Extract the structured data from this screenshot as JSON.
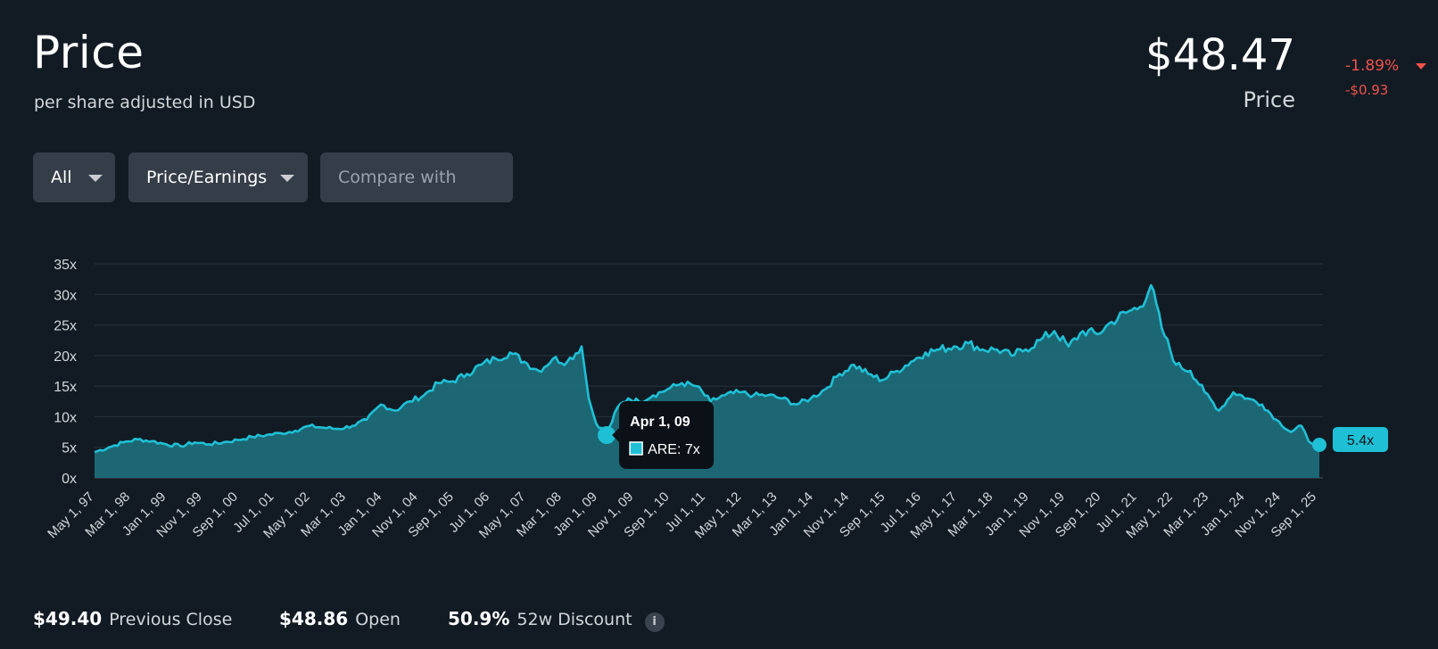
{
  "header": {
    "title": "Price",
    "subtitle": "per share adjusted in USD",
    "price": "$48.47",
    "price_label": "Price",
    "change_pct": "-1.89%",
    "change_abs": "-$0.93"
  },
  "controls": {
    "range": "All",
    "metric": "Price/Earnings",
    "compare_placeholder": "Compare with"
  },
  "tooltip": {
    "date": "Apr 1, 09",
    "series_text": "ARE: 7x"
  },
  "last_badge": "5.4x",
  "stats": {
    "previous_close_value": "$49.40",
    "previous_close_label": "Previous Close",
    "open_value": "$48.86",
    "open_label": "Open",
    "discount_value": "50.9%",
    "discount_label": "52w Discount",
    "info_icon": "info-icon"
  },
  "colors": {
    "background": "#121b24",
    "line": "#1fc0d6",
    "area": "#1e6b78",
    "negative": "#f0524a"
  },
  "chart_data": {
    "type": "area",
    "series": [
      {
        "name": "ARE"
      }
    ],
    "y_ticks": [
      "0x",
      "5x",
      "10x",
      "15x",
      "20x",
      "25x",
      "30x",
      "35x"
    ],
    "ylim": [
      0,
      35
    ],
    "x_tick_labels": [
      "May 1, 97",
      "Mar 1, 98",
      "Jan 1, 99",
      "Nov 1, 99",
      "Sep 1, 00",
      "Jul 1, 01",
      "May 1, 02",
      "Mar 1, 03",
      "Jan 1, 04",
      "Nov 1, 04",
      "Sep 1, 05",
      "Jul 1, 06",
      "May 1, 07",
      "Mar 1, 08",
      "Jan 1, 09",
      "Nov 1, 09",
      "Sep 1, 10",
      "Jul 1, 11",
      "May 1, 12",
      "Mar 1, 13",
      "Jan 1, 14",
      "Nov 1, 14",
      "Sep 1, 15",
      "Jul 1, 16",
      "May 1, 17",
      "Mar 1, 18",
      "Jan 1, 19",
      "Nov 1, 19",
      "Sep 1, 20",
      "Jul 1, 21",
      "May 1, 22",
      "Mar 1, 23",
      "Jan 1, 24",
      "Nov 1, 24",
      "Sep 1, 25"
    ],
    "points": [
      [
        "1997-05",
        4.2
      ],
      [
        "1997-09",
        5.0
      ],
      [
        "1998-01",
        5.8
      ],
      [
        "1998-05",
        6.3
      ],
      [
        "1998-09",
        6.0
      ],
      [
        "1999-01",
        5.5
      ],
      [
        "1999-05",
        5.2
      ],
      [
        "1999-09",
        5.8
      ],
      [
        "2000-01",
        5.5
      ],
      [
        "2000-05",
        5.8
      ],
      [
        "2000-09",
        6.2
      ],
      [
        "2001-01",
        6.7
      ],
      [
        "2001-05",
        7.0
      ],
      [
        "2001-09",
        7.3
      ],
      [
        "2002-01",
        7.7
      ],
      [
        "2002-05",
        8.5
      ],
      [
        "2002-09",
        8.2
      ],
      [
        "2003-01",
        8.0
      ],
      [
        "2003-05",
        8.5
      ],
      [
        "2003-09",
        9.5
      ],
      [
        "2004-01",
        12.0
      ],
      [
        "2004-05",
        11.0
      ],
      [
        "2004-09",
        12.5
      ],
      [
        "2005-01",
        13.5
      ],
      [
        "2005-05",
        15.5
      ],
      [
        "2005-09",
        15.8
      ],
      [
        "2006-01",
        17.0
      ],
      [
        "2006-05",
        18.5
      ],
      [
        "2006-09",
        19.5
      ],
      [
        "2007-01",
        20.5
      ],
      [
        "2007-05",
        19.0
      ],
      [
        "2007-09",
        17.5
      ],
      [
        "2008-01",
        19.5
      ],
      [
        "2008-05",
        19.0
      ],
      [
        "2008-09",
        21.5
      ],
      [
        "2008-11",
        13.0
      ],
      [
        "2009-01",
        9.0
      ],
      [
        "2009-04",
        7.0
      ],
      [
        "2009-07",
        11.5
      ],
      [
        "2009-10",
        13.0
      ],
      [
        "2010-01",
        12.5
      ],
      [
        "2010-05",
        13.5
      ],
      [
        "2010-09",
        14.5
      ],
      [
        "2011-01",
        15.5
      ],
      [
        "2011-05",
        15.0
      ],
      [
        "2011-09",
        12.5
      ],
      [
        "2012-01",
        13.5
      ],
      [
        "2012-05",
        14.0
      ],
      [
        "2012-09",
        13.5
      ],
      [
        "2013-01",
        13.5
      ],
      [
        "2013-05",
        13.0
      ],
      [
        "2013-09",
        12.0
      ],
      [
        "2014-01",
        13.0
      ],
      [
        "2014-05",
        14.5
      ],
      [
        "2014-09",
        17.0
      ],
      [
        "2015-01",
        18.5
      ],
      [
        "2015-05",
        17.0
      ],
      [
        "2015-09",
        16.0
      ],
      [
        "2016-01",
        17.5
      ],
      [
        "2016-05",
        19.0
      ],
      [
        "2016-09",
        20.5
      ],
      [
        "2017-01",
        21.0
      ],
      [
        "2017-05",
        21.5
      ],
      [
        "2017-09",
        22.0
      ],
      [
        "2018-01",
        21.0
      ],
      [
        "2018-05",
        21.0
      ],
      [
        "2018-09",
        20.0
      ],
      [
        "2019-01",
        21.0
      ],
      [
        "2019-05",
        22.5
      ],
      [
        "2019-09",
        24.0
      ],
      [
        "2020-01",
        21.5
      ],
      [
        "2020-05",
        24.0
      ],
      [
        "2020-09",
        23.5
      ],
      [
        "2021-01",
        25.5
      ],
      [
        "2021-05",
        27.0
      ],
      [
        "2021-09",
        28.0
      ],
      [
        "2021-12",
        31.5
      ],
      [
        "2022-03",
        24.5
      ],
      [
        "2022-07",
        18.5
      ],
      [
        "2022-11",
        17.5
      ],
      [
        "2023-03",
        14.0
      ],
      [
        "2023-07",
        11.0
      ],
      [
        "2023-11",
        14.0
      ],
      [
        "2024-03",
        13.0
      ],
      [
        "2024-07",
        12.0
      ],
      [
        "2024-11",
        9.5
      ],
      [
        "2025-03",
        7.5
      ],
      [
        "2025-06",
        8.5
      ],
      [
        "2025-08",
        6.0
      ],
      [
        "2025-11",
        5.4
      ]
    ]
  }
}
